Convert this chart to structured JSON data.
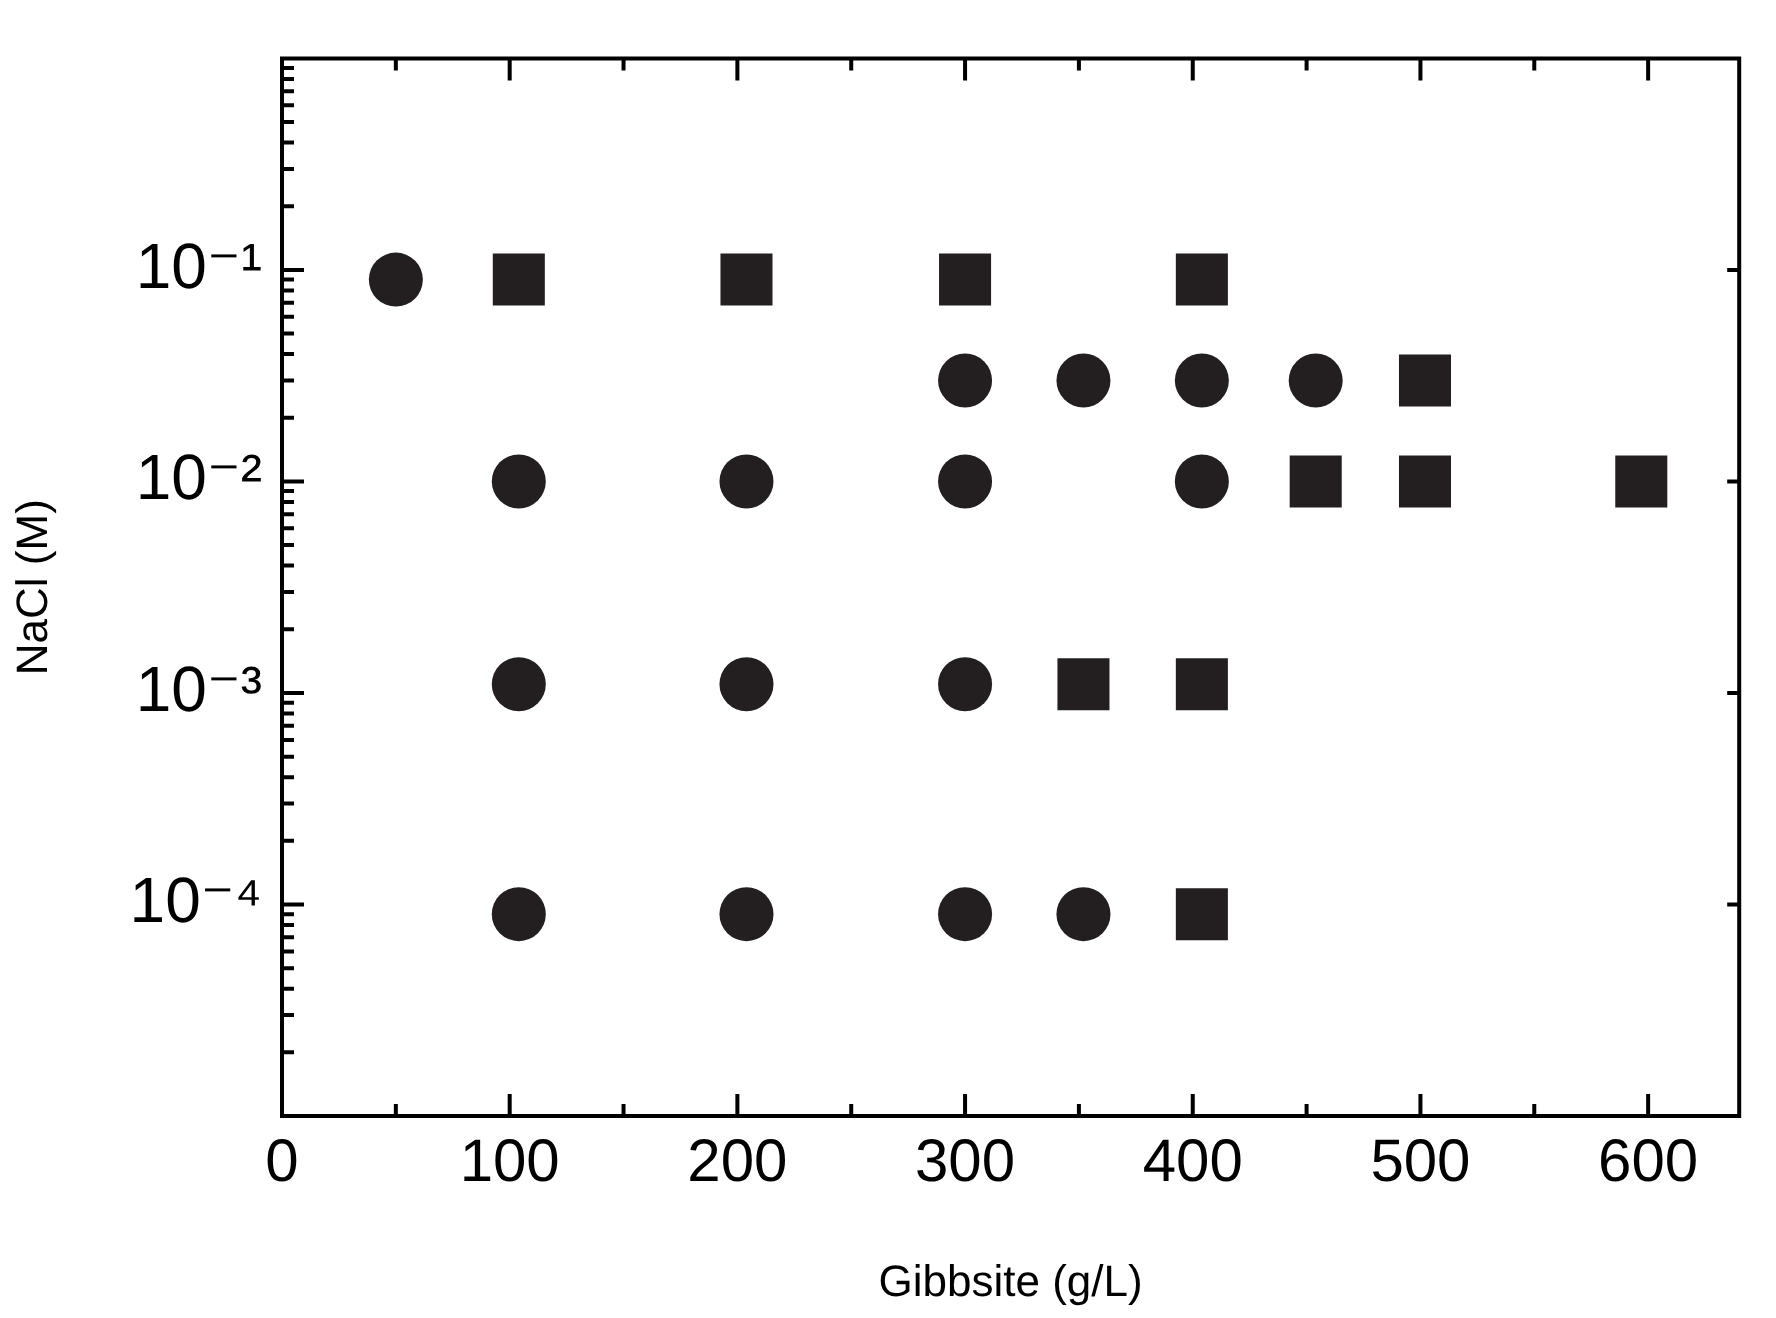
{
  "chart_data": {
    "type": "scatter",
    "xlabel": "Gibbsite (g/L)",
    "ylabel": "NaCl (M)",
    "log": "y",
    "grid": false,
    "legend": false,
    "xlim": [
      0,
      640
    ],
    "ylim": [
      1e-05,
      1
    ],
    "xticks": [
      0,
      {
        "value": 50,
        "label": null
      },
      100,
      {
        "value": 150,
        "label": null
      },
      200,
      {
        "value": 250,
        "label": null
      },
      300,
      {
        "value": 350,
        "label": null
      },
      400,
      {
        "value": 450,
        "label": null
      },
      500,
      {
        "value": 550,
        "label": null
      },
      600
    ],
    "yticks": [
      {
        "value": 2e-05,
        "label": null
      },
      {
        "value": 3e-05,
        "label": null
      },
      {
        "value": 4e-05,
        "label": null
      },
      {
        "value": 5e-05,
        "label": null
      },
      {
        "value": 6e-05,
        "label": null
      },
      {
        "value": 7e-05,
        "label": null
      },
      {
        "value": 8e-05,
        "label": null
      },
      {
        "value": 9e-05,
        "label": null
      },
      {
        "value": 0.0001,
        "label": "10⁻⁴"
      },
      {
        "value": 0.0002,
        "label": null
      },
      {
        "value": 0.0003,
        "label": null
      },
      {
        "value": 0.0004,
        "label": null
      },
      {
        "value": 0.0005,
        "label": null
      },
      {
        "value": 0.0006,
        "label": null
      },
      {
        "value": 0.0007,
        "label": null
      },
      {
        "value": 0.0008,
        "label": null
      },
      {
        "value": 0.0009,
        "label": null
      },
      {
        "value": 0.001,
        "label": "10⁻³"
      },
      {
        "value": 0.002,
        "label": null
      },
      {
        "value": 0.003,
        "label": null
      },
      {
        "value": 0.004,
        "label": null
      },
      {
        "value": 0.005,
        "label": null
      },
      {
        "value": 0.006,
        "label": null
      },
      {
        "value": 0.007,
        "label": null
      },
      {
        "value": 0.008,
        "label": null
      },
      {
        "value": 0.009,
        "label": null
      },
      {
        "value": 0.01,
        "label": "10⁻²"
      },
      {
        "value": 0.02,
        "label": null
      },
      {
        "value": 0.03,
        "label": null
      },
      {
        "value": 0.04,
        "label": null
      },
      {
        "value": 0.05,
        "label": null
      },
      {
        "value": 0.06,
        "label": null
      },
      {
        "value": 0.07,
        "label": null
      },
      {
        "value": 0.08,
        "label": null
      },
      {
        "value": 0.09,
        "label": null
      },
      {
        "value": 0.1,
        "label": "10⁻¹"
      },
      {
        "value": 0.2,
        "label": null
      },
      {
        "value": 0.3,
        "label": null
      },
      {
        "value": 0.4,
        "label": null
      },
      {
        "value": 0.5,
        "label": null
      },
      {
        "value": 0.6,
        "label": null
      },
      {
        "value": 0.7,
        "label": null
      },
      {
        "value": 0.8,
        "label": null
      },
      {
        "value": 0.9,
        "label": null
      }
    ],
    "series": [
      {
        "color": "#231f20",
        "marker": "circle",
        "x": [
          50,
          300,
          352,
          404,
          454,
          104,
          204,
          300,
          404,
          104,
          204,
          300,
          104,
          204,
          300,
          352
        ],
        "values": [
          0.09,
          0.03,
          0.03,
          0.03,
          0.03,
          0.01,
          0.01,
          0.01,
          0.01,
          0.0011,
          0.0011,
          0.0011,
          9e-05,
          9e-05,
          9e-05,
          9e-05
        ]
      },
      {
        "color": "#231f20",
        "marker": "square",
        "x": [
          104,
          204,
          300,
          404,
          502,
          454,
          502,
          597,
          352,
          404,
          404
        ],
        "values": [
          0.09,
          0.09,
          0.09,
          0.09,
          0.03,
          0.01,
          0.01,
          0.01,
          0.0011,
          0.0011,
          9e-05
        ]
      }
    ]
  }
}
